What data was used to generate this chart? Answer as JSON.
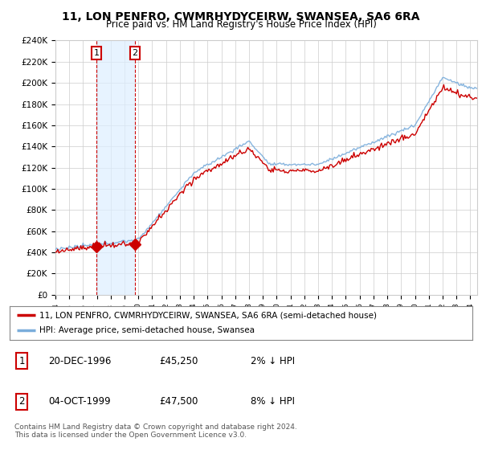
{
  "title": "11, LON PENFRO, CWMRHYDYCEIRW, SWANSEA, SA6 6RA",
  "subtitle": "Price paid vs. HM Land Registry's House Price Index (HPI)",
  "ylim": [
    0,
    240000
  ],
  "yticks": [
    0,
    20000,
    40000,
    60000,
    80000,
    100000,
    120000,
    140000,
    160000,
    180000,
    200000,
    220000,
    240000
  ],
  "ytick_labels": [
    "£0",
    "£20K",
    "£40K",
    "£60K",
    "£80K",
    "£100K",
    "£120K",
    "£140K",
    "£160K",
    "£180K",
    "£200K",
    "£220K",
    "£240K"
  ],
  "hpi_color": "#7aaddb",
  "price_color": "#cc0000",
  "marker_color": "#cc0000",
  "sale1_date_num": 1996.96,
  "sale1_price": 45250,
  "sale1_label": "1",
  "sale2_date_num": 1999.75,
  "sale2_price": 47500,
  "sale2_label": "2",
  "highlight_color": "#ddeeff",
  "legend_label1": "11, LON PENFRO, CWMRHYDYCEIRW, SWANSEA, SA6 6RA (semi-detached house)",
  "legend_label2": "HPI: Average price, semi-detached house, Swansea",
  "table_row1": [
    "1",
    "20-DEC-1996",
    "£45,250",
    "2% ↓ HPI"
  ],
  "table_row2": [
    "2",
    "04-OCT-1999",
    "£47,500",
    "8% ↓ HPI"
  ],
  "footnote": "Contains HM Land Registry data © Crown copyright and database right 2024.\nThis data is licensed under the Open Government Licence v3.0.",
  "bg_color": "#ffffff",
  "grid_color": "#cccccc",
  "xmin": 1994.0,
  "xmax": 2024.5
}
